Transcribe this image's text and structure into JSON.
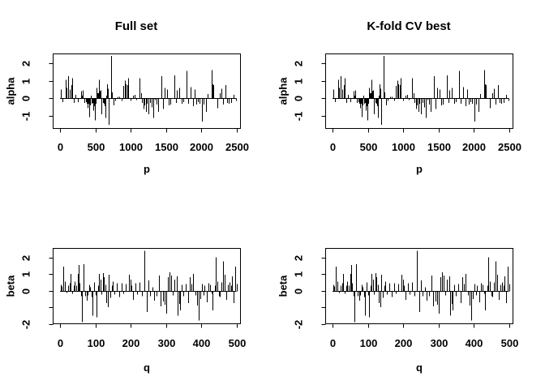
{
  "figure": {
    "background": "#ffffff",
    "ink": "#000000"
  },
  "chart_data": {
    "type": "bar",
    "description": "2x2 grid of R-style vertical spike (type='h') coefficient plots; left column 'Full set' and right column 'K-fold CV best' show identical coefficients",
    "panels": [
      {
        "id": "top-left",
        "row": "top",
        "title": "Full set",
        "xlabel": "p",
        "ylabel": "alpha",
        "series": "alpha",
        "xticks": [
          0,
          500,
          1000,
          1500,
          2000,
          2500
        ],
        "yticks": [
          {
            "v": -1,
            "label": "-1"
          },
          {
            "v": 0,
            "label": "0"
          },
          {
            "v": 1,
            "label": "1"
          },
          {
            "v": 2,
            "label": "2"
          }
        ],
        "xlim": [
          0,
          2500
        ],
        "ylim": [
          -1.7,
          2.52
        ]
      },
      {
        "id": "top-right",
        "row": "top",
        "title": "K-fold CV best",
        "xlabel": "p",
        "ylabel": "alpha",
        "series": "alpha",
        "xticks": [
          0,
          500,
          1000,
          1500,
          2000,
          2500
        ],
        "yticks": [
          {
            "v": -1,
            "label": "-1"
          },
          {
            "v": 0,
            "label": "0"
          },
          {
            "v": 1,
            "label": "1"
          },
          {
            "v": 2,
            "label": "2"
          }
        ],
        "xlim": [
          0,
          2500
        ],
        "ylim": [
          -1.7,
          2.52
        ]
      },
      {
        "id": "bottom-left",
        "row": "bottom",
        "title": "",
        "xlabel": "q",
        "ylabel": "beta",
        "series": "beta",
        "xticks": [
          0,
          100,
          200,
          300,
          400,
          500
        ],
        "yticks": [
          {
            "v": -2,
            "label": "-2"
          },
          {
            "v": -1,
            "label": ""
          },
          {
            "v": 0,
            "label": "0"
          },
          {
            "v": 1,
            "label": "1"
          },
          {
            "v": 2,
            "label": "2"
          }
        ],
        "xlim": [
          0,
          500
        ],
        "ylim": [
          -2.0,
          2.54
        ]
      },
      {
        "id": "bottom-right",
        "row": "bottom",
        "title": "",
        "xlabel": "q",
        "ylabel": "beta",
        "series": "beta",
        "xticks": [
          0,
          100,
          200,
          300,
          400,
          500
        ],
        "yticks": [
          {
            "v": -2,
            "label": "-2"
          },
          {
            "v": -1,
            "label": ""
          },
          {
            "v": 0,
            "label": "0"
          },
          {
            "v": 1,
            "label": "1"
          },
          {
            "v": 2,
            "label": "2"
          }
        ],
        "xlim": [
          0,
          500
        ],
        "ylim": [
          -2.0,
          2.54
        ]
      }
    ],
    "series": {
      "alpha": {
        "points": [
          [
            10,
            0.5
          ],
          [
            35,
            -0.2
          ],
          [
            80,
            1.05
          ],
          [
            90,
            0.6
          ],
          [
            115,
            1.25
          ],
          [
            140,
            0.5
          ],
          [
            160,
            0.75
          ],
          [
            170,
            1.15
          ],
          [
            195,
            -0.25
          ],
          [
            220,
            0.2
          ],
          [
            250,
            -0.2
          ],
          [
            300,
            0.4
          ],
          [
            310,
            0.15
          ],
          [
            325,
            0.45
          ],
          [
            350,
            -0.25
          ],
          [
            365,
            -0.2
          ],
          [
            380,
            -0.3
          ],
          [
            395,
            -0.55
          ],
          [
            405,
            -0.3
          ],
          [
            415,
            -1.05
          ],
          [
            425,
            -0.4
          ],
          [
            435,
            0.15
          ],
          [
            445,
            -0.3
          ],
          [
            455,
            -0.25
          ],
          [
            470,
            -0.7
          ],
          [
            480,
            -0.45
          ],
          [
            490,
            -1.25
          ],
          [
            500,
            -0.3
          ],
          [
            515,
            0.6
          ],
          [
            525,
            0.3
          ],
          [
            535,
            0.3
          ],
          [
            545,
            0.25
          ],
          [
            555,
            1.05
          ],
          [
            565,
            0.4
          ],
          [
            575,
            0.45
          ],
          [
            590,
            -0.9
          ],
          [
            605,
            -0.25
          ],
          [
            615,
            -0.3
          ],
          [
            630,
            -0.45
          ],
          [
            640,
            -1.1
          ],
          [
            655,
            0.15
          ],
          [
            665,
            0.8
          ],
          [
            680,
            0.55
          ],
          [
            695,
            -1.5
          ],
          [
            720,
            2.4
          ],
          [
            740,
            0.35
          ],
          [
            755,
            -0.4
          ],
          [
            785,
            -0.15
          ],
          [
            820,
            0.1
          ],
          [
            840,
            0.1
          ],
          [
            875,
            -0.15
          ],
          [
            900,
            0.7
          ],
          [
            915,
            1.0
          ],
          [
            930,
            0.8
          ],
          [
            950,
            0.75
          ],
          [
            965,
            1.15
          ],
          [
            1000,
            -0.15
          ],
          [
            1030,
            0.15
          ],
          [
            1055,
            0.2
          ],
          [
            1080,
            -0.1
          ],
          [
            1125,
            1.15
          ],
          [
            1145,
            0.3
          ],
          [
            1165,
            -0.25
          ],
          [
            1180,
            -0.6
          ],
          [
            1200,
            -0.4
          ],
          [
            1215,
            -0.75
          ],
          [
            1235,
            -0.3
          ],
          [
            1255,
            -0.9
          ],
          [
            1275,
            -0.25
          ],
          [
            1295,
            -0.5
          ],
          [
            1320,
            -1.1
          ],
          [
            1345,
            -0.1
          ],
          [
            1370,
            -0.35
          ],
          [
            1395,
            -0.75
          ],
          [
            1435,
            1.25
          ],
          [
            1455,
            -0.6
          ],
          [
            1480,
            0.6
          ],
          [
            1515,
            0.5
          ],
          [
            1540,
            -0.4
          ],
          [
            1565,
            -0.35
          ],
          [
            1615,
            1.3
          ],
          [
            1640,
            -0.25
          ],
          [
            1660,
            0.45
          ],
          [
            1695,
            0.6
          ],
          [
            1725,
            -0.3
          ],
          [
            1750,
            -0.2
          ],
          [
            1790,
            1.55
          ],
          [
            1815,
            -0.3
          ],
          [
            1850,
            0.65
          ],
          [
            1880,
            -0.45
          ],
          [
            1910,
            0.5
          ],
          [
            1930,
            -0.35
          ],
          [
            1955,
            -0.2
          ],
          [
            1980,
            -0.3
          ],
          [
            2010,
            -1.3
          ],
          [
            2040,
            -0.35
          ],
          [
            2065,
            -0.75
          ],
          [
            2095,
            0.25
          ],
          [
            2145,
            0.85
          ],
          [
            2155,
            1.6
          ],
          [
            2165,
            0.8
          ],
          [
            2175,
            0.75
          ],
          [
            2225,
            -0.55
          ],
          [
            2260,
            0.3
          ],
          [
            2285,
            0.55
          ],
          [
            2315,
            -0.35
          ],
          [
            2345,
            0.75
          ],
          [
            2370,
            -0.25
          ],
          [
            2395,
            -0.3
          ],
          [
            2425,
            -0.25
          ],
          [
            2460,
            0.2
          ],
          [
            2490,
            -0.15
          ]
        ]
      },
      "beta": {
        "points": [
          [
            2,
            0.35
          ],
          [
            5,
            0.25
          ],
          [
            10,
            1.45
          ],
          [
            14,
            0.55
          ],
          [
            18,
            -0.15
          ],
          [
            22,
            0.3
          ],
          [
            27,
            0.45
          ],
          [
            30,
            1.0
          ],
          [
            34,
            -0.2
          ],
          [
            38,
            0.3
          ],
          [
            42,
            0.55
          ],
          [
            47,
            0.3
          ],
          [
            50,
            1.0
          ],
          [
            53,
            1.55
          ],
          [
            56,
            0.45
          ],
          [
            59,
            -0.35
          ],
          [
            63,
            -1.9
          ],
          [
            67,
            1.6
          ],
          [
            71,
            -0.35
          ],
          [
            75,
            -0.6
          ],
          [
            79,
            -0.3
          ],
          [
            83,
            0.35
          ],
          [
            86,
            0.2
          ],
          [
            90,
            -0.4
          ],
          [
            93,
            -1.5
          ],
          [
            97,
            0.5
          ],
          [
            100,
            -0.3
          ],
          [
            104,
            -1.6
          ],
          [
            108,
            0.3
          ],
          [
            111,
            1.0
          ],
          [
            114,
            0.65
          ],
          [
            117,
            -0.25
          ],
          [
            121,
            1.05
          ],
          [
            124,
            0.8
          ],
          [
            128,
            0.35
          ],
          [
            131,
            -0.75
          ],
          [
            135,
            -1.0
          ],
          [
            138,
            0.95
          ],
          [
            142,
            -0.45
          ],
          [
            146,
            0.3
          ],
          [
            150,
            0.55
          ],
          [
            154,
            -0.25
          ],
          [
            160,
            0.45
          ],
          [
            167,
            -0.4
          ],
          [
            174,
            0.45
          ],
          [
            180,
            -0.2
          ],
          [
            187,
            0.4
          ],
          [
            196,
            0.95
          ],
          [
            200,
            0.65
          ],
          [
            203,
            0.3
          ],
          [
            208,
            -0.55
          ],
          [
            213,
            0.45
          ],
          [
            218,
            -0.25
          ],
          [
            226,
            0.5
          ],
          [
            233,
            -0.35
          ],
          [
            240,
            2.4
          ],
          [
            245,
            -1.3
          ],
          [
            251,
            0.6
          ],
          [
            256,
            -0.35
          ],
          [
            262,
            0.2
          ],
          [
            267,
            -0.6
          ],
          [
            274,
            -0.35
          ],
          [
            281,
            0.9
          ],
          [
            286,
            -0.95
          ],
          [
            292,
            -0.65
          ],
          [
            297,
            -0.85
          ],
          [
            300,
            -1.4
          ],
          [
            305,
            0.8
          ],
          [
            310,
            1.1
          ],
          [
            315,
            0.9
          ],
          [
            320,
            -0.3
          ],
          [
            325,
            0.65
          ],
          [
            330,
            0.85
          ],
          [
            334,
            -1.5
          ],
          [
            337,
            -0.8
          ],
          [
            341,
            -1.2
          ],
          [
            345,
            0.35
          ],
          [
            349,
            -0.35
          ],
          [
            356,
            0.4
          ],
          [
            363,
            -0.75
          ],
          [
            368,
            0.8
          ],
          [
            372,
            0.4
          ],
          [
            378,
            1.0
          ],
          [
            383,
            -0.3
          ],
          [
            388,
            -0.9
          ],
          [
            392,
            -1.8
          ],
          [
            397,
            -0.5
          ],
          [
            402,
            0.4
          ],
          [
            406,
            -0.3
          ],
          [
            410,
            0.3
          ],
          [
            415,
            -0.7
          ],
          [
            420,
            0.45
          ],
          [
            425,
            0.35
          ],
          [
            429,
            -0.2
          ],
          [
            433,
            -1.2
          ],
          [
            438,
            0.3
          ],
          [
            442,
            2.0
          ],
          [
            446,
            0.55
          ],
          [
            450,
            -0.35
          ],
          [
            454,
            -0.4
          ],
          [
            458,
            0.5
          ],
          [
            463,
            1.75
          ],
          [
            467,
            0.95
          ],
          [
            472,
            -0.55
          ],
          [
            476,
            0.35
          ],
          [
            480,
            0.5
          ],
          [
            484,
            0.3
          ],
          [
            488,
            0.85
          ],
          [
            492,
            -0.75
          ],
          [
            496,
            1.45
          ],
          [
            500,
            0.4
          ]
        ]
      }
    }
  }
}
